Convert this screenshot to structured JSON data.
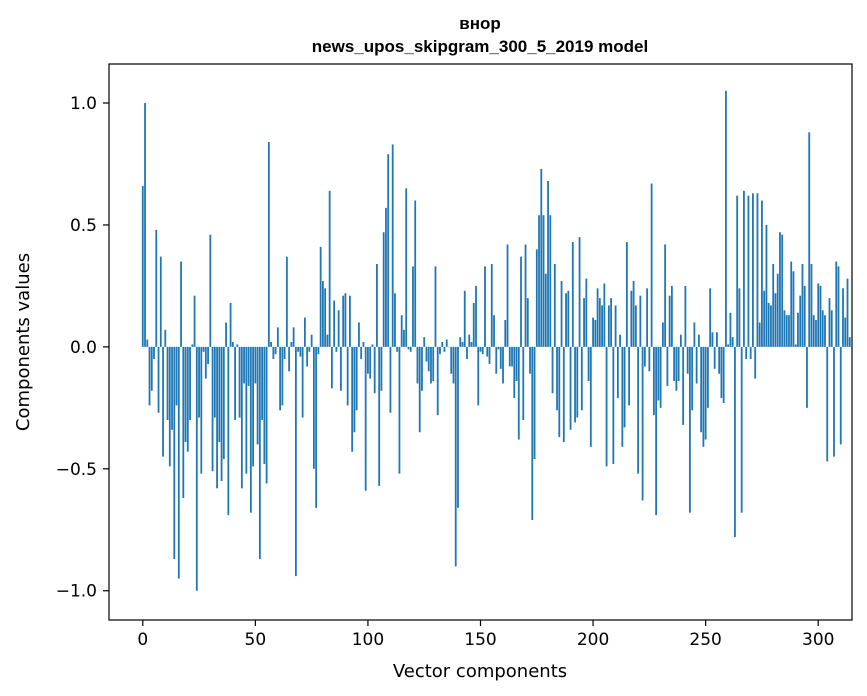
{
  "chart_data": {
    "type": "bar",
    "title": "внор",
    "subtitle": "news_upos_skipgram_300_5_2019 model",
    "xlabel": "Vector components",
    "ylabel": "Components values",
    "xlim": [
      -15,
      315
    ],
    "ylim": [
      -1.12,
      1.16
    ],
    "xticks": [
      0,
      50,
      100,
      150,
      200,
      250,
      300
    ],
    "yticks": [
      1.0,
      0.5,
      0.0,
      -0.5,
      -1.0
    ],
    "ytick_labels": [
      "1.0",
      "0.5",
      "0.0",
      "−0.5",
      "−1.0"
    ],
    "bar_color": "#1f77b4",
    "values": [
      0.66,
      1.0,
      0.03,
      -0.24,
      -0.18,
      -0.05,
      0.48,
      -0.27,
      0.37,
      -0.45,
      0.07,
      -0.3,
      -0.49,
      -0.34,
      -0.87,
      -0.24,
      -0.95,
      0.35,
      -0.62,
      -0.39,
      -0.43,
      -0.3,
      0.01,
      0.21,
      -1.0,
      -0.29,
      -0.52,
      -0.02,
      -0.13,
      -0.07,
      0.46,
      -0.51,
      -0.29,
      -0.58,
      -0.39,
      -0.55,
      -0.46,
      0.1,
      -0.69,
      0.18,
      0.02,
      -0.3,
      0.01,
      -0.29,
      -0.58,
      -0.15,
      -0.52,
      -0.16,
      -0.68,
      -0.49,
      -0.15,
      -0.4,
      -0.87,
      -0.3,
      -0.48,
      -0.56,
      0.84,
      0.02,
      -0.05,
      -0.03,
      0.08,
      -0.26,
      -0.24,
      -0.05,
      0.37,
      -0.1,
      0.02,
      0.08,
      -0.94,
      -0.02,
      -0.04,
      -0.29,
      0.12,
      -0.08,
      -0.02,
      0.05,
      -0.5,
      -0.66,
      -0.03,
      0.41,
      0.27,
      0.24,
      0.05,
      0.64,
      -0.17,
      0.19,
      -0.02,
      0.15,
      -0.18,
      0.21,
      0.22,
      -0.24,
      0.21,
      -0.43,
      -0.35,
      -0.26,
      0.1,
      -0.05,
      0.02,
      -0.59,
      -0.11,
      -0.13,
      0.01,
      -0.19,
      0.34,
      -0.57,
      -0.18,
      0.47,
      0.57,
      0.79,
      -0.27,
      0.83,
      0.22,
      -0.02,
      -0.52,
      0.13,
      0.07,
      0.65,
      -0.01,
      -0.02,
      0.33,
      0.6,
      -0.15,
      -0.35,
      -0.18,
      0.04,
      -0.06,
      -0.1,
      -0.15,
      -0.14,
      0.33,
      -0.28,
      -0.03,
      0.02,
      -0.02,
      0.03,
      0.0,
      -0.11,
      -0.15,
      -0.9,
      -0.66,
      0.04,
      0.02,
      0.23,
      -0.05,
      0.05,
      0.02,
      0.18,
      0.25,
      -0.24,
      -0.02,
      -0.03,
      0.33,
      -0.04,
      -0.07,
      0.34,
      0.13,
      -0.11,
      -0.01,
      -0.09,
      -0.15,
      0.11,
      0.42,
      -0.08,
      -0.08,
      -0.21,
      -0.14,
      -0.38,
      0.37,
      -0.3,
      0.42,
      0.2,
      -0.11,
      -0.71,
      -0.46,
      0.4,
      0.54,
      0.73,
      0.54,
      0.3,
      0.68,
      0.54,
      -0.19,
      0.34,
      -0.26,
      -0.37,
      0.27,
      -0.39,
      0.22,
      0.23,
      -0.34,
      0.43,
      -0.31,
      -0.29,
      0.45,
      -0.26,
      0.2,
      0.28,
      -0.14,
      -0.41,
      0.12,
      0.11,
      0.24,
      0.2,
      0.17,
      0.26,
      -0.49,
      0.17,
      0.2,
      -0.48,
      0.17,
      -0.21,
      0.05,
      -0.41,
      -0.33,
      0.43,
      -0.24,
      0.23,
      0.27,
      0.17,
      -0.52,
      0.21,
      -0.63,
      -0.08,
      0.24,
      -0.1,
      0.67,
      -0.28,
      -0.69,
      -0.22,
      -0.25,
      0.1,
      0.42,
      -0.16,
      0.21,
      0.25,
      -0.14,
      -0.18,
      -0.14,
      0.05,
      -0.32,
      0.25,
      -0.11,
      -0.68,
      -0.26,
      0.1,
      -0.15,
      0.05,
      -0.35,
      -0.41,
      -0.38,
      -0.25,
      0.24,
      0.06,
      -0.09,
      0.06,
      -0.11,
      -0.21,
      -0.23,
      1.05,
      0.01,
      0.14,
      0.04,
      -0.78,
      0.62,
      0.24,
      -0.68,
      0.64,
      -0.05,
      0.62,
      -0.05,
      0.63,
      -0.13,
      0.63,
      0.1,
      0.6,
      0.23,
      0.5,
      0.18,
      0.17,
      0.34,
      0.22,
      0.3,
      0.47,
      0.46,
      0.15,
      0.13,
      0.13,
      0.35,
      0.31,
      0.01,
      0.14,
      0.21,
      0.34,
      0.25,
      -0.25,
      0.88,
      0.34,
      0.13,
      0.11,
      0.26,
      0.25,
      0.15,
      0.13,
      -0.47,
      0.2,
      0.15,
      -0.45,
      0.35,
      0.33,
      -0.4,
      0.24,
      0.12,
      0.28,
      0.04
    ]
  }
}
